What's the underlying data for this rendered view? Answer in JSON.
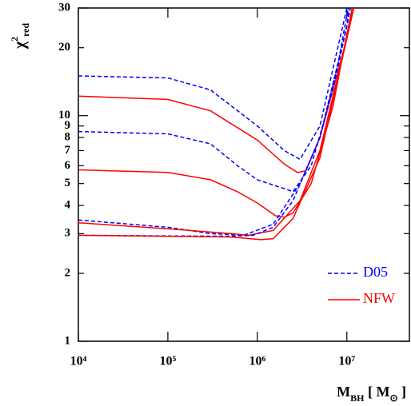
{
  "chart_data": {
    "type": "line",
    "ylabel": [
      {
        "text": "χ"
      },
      {
        "text": "2",
        "sup": true
      },
      {
        "text": "red",
        "sub": true
      }
    ],
    "xlabel": [
      {
        "text": "M"
      },
      {
        "text": "BH",
        "sub": true
      },
      {
        "text": " [ M"
      },
      {
        "text": "⊙",
        "sub": true
      },
      {
        "text": " ]"
      }
    ],
    "log_x": true,
    "log_y": true,
    "xlim": [
      10000,
      50000000
    ],
    "ylim": [
      1,
      30
    ],
    "xticks": [
      {
        "value": 10000,
        "label": "10⁴"
      },
      {
        "value": 100000,
        "label": "10⁵"
      },
      {
        "value": 1000000,
        "label": "10⁶"
      },
      {
        "value": 10000000,
        "label": "10⁷"
      }
    ],
    "yticks": [
      1,
      2,
      3,
      4,
      5,
      6,
      7,
      8,
      9,
      10,
      20,
      30
    ],
    "legend_position": "lower right",
    "series": [
      {
        "name": "D05",
        "color": "#0000ff",
        "dash": true,
        "x": [
          10000,
          100000,
          300000,
          1000000,
          2000000,
          3000000,
          5000000,
          10000000
        ],
        "values": [
          15,
          14.7,
          13,
          9,
          7,
          6.4,
          9,
          30
        ]
      },
      {
        "name": "NFW",
        "color": "#ff0000",
        "dash": false,
        "x": [
          10000,
          100000,
          300000,
          1000000,
          2000000,
          2800000,
          3500000,
          5000000,
          10000000,
          11500000
        ],
        "values": [
          12.2,
          11.8,
          10.5,
          7.8,
          6.1,
          5.6,
          5.7,
          8,
          22,
          30
        ]
      },
      {
        "name": "D05",
        "color": "#0000ff",
        "dash": true,
        "x": [
          10000,
          100000,
          300000,
          600000,
          1000000,
          2000000,
          2500000,
          4000000,
          7000000,
          10000000,
          10500000
        ],
        "values": [
          8.5,
          8.3,
          7.5,
          6,
          5.2,
          4.75,
          4.6,
          6,
          13,
          25,
          30
        ]
      },
      {
        "name": "NFW",
        "color": "#ff0000",
        "dash": false,
        "x": [
          10000,
          100000,
          300000,
          600000,
          1000000,
          1600000,
          2000000,
          2500000,
          4000000,
          7000000,
          10000000,
          11500000
        ],
        "values": [
          5.75,
          5.6,
          5.2,
          4.6,
          4.1,
          3.6,
          3.55,
          3.7,
          5,
          11,
          23,
          30
        ]
      },
      {
        "name": "D05",
        "color": "#0000ff",
        "dash": true,
        "x": [
          10000,
          100000,
          300000,
          700000,
          1500000,
          3000000,
          5000000,
          8000000,
          10000000,
          10500000
        ],
        "values": [
          3.45,
          3.2,
          3,
          2.95,
          3.3,
          5,
          8,
          17,
          28,
          30
        ]
      },
      {
        "name": "NFW",
        "color": "#ff0000",
        "dash": false,
        "x": [
          10000,
          100000,
          500000,
          800000,
          1500000,
          3000000,
          5000000,
          10000000,
          11500000
        ],
        "values": [
          3.35,
          3.15,
          3,
          2.95,
          3.1,
          4.2,
          7,
          22,
          30
        ]
      },
      {
        "name": "D05",
        "color": "#0000ff",
        "dash": true,
        "x": [
          10000,
          100000,
          500000,
          900000,
          1500000,
          2500000,
          5000000,
          10000000,
          11000000
        ],
        "values": [
          2.95,
          2.93,
          2.92,
          2.95,
          3.2,
          4.2,
          8,
          25,
          30
        ]
      },
      {
        "name": "NFW",
        "color": "#ff0000",
        "dash": false,
        "x": [
          10000,
          100000,
          500000,
          1100000,
          1500000,
          2500000,
          5000000,
          10000000,
          12000000
        ],
        "values": [
          2.95,
          2.92,
          2.9,
          2.82,
          2.85,
          3.5,
          6.5,
          22,
          30
        ]
      }
    ]
  }
}
